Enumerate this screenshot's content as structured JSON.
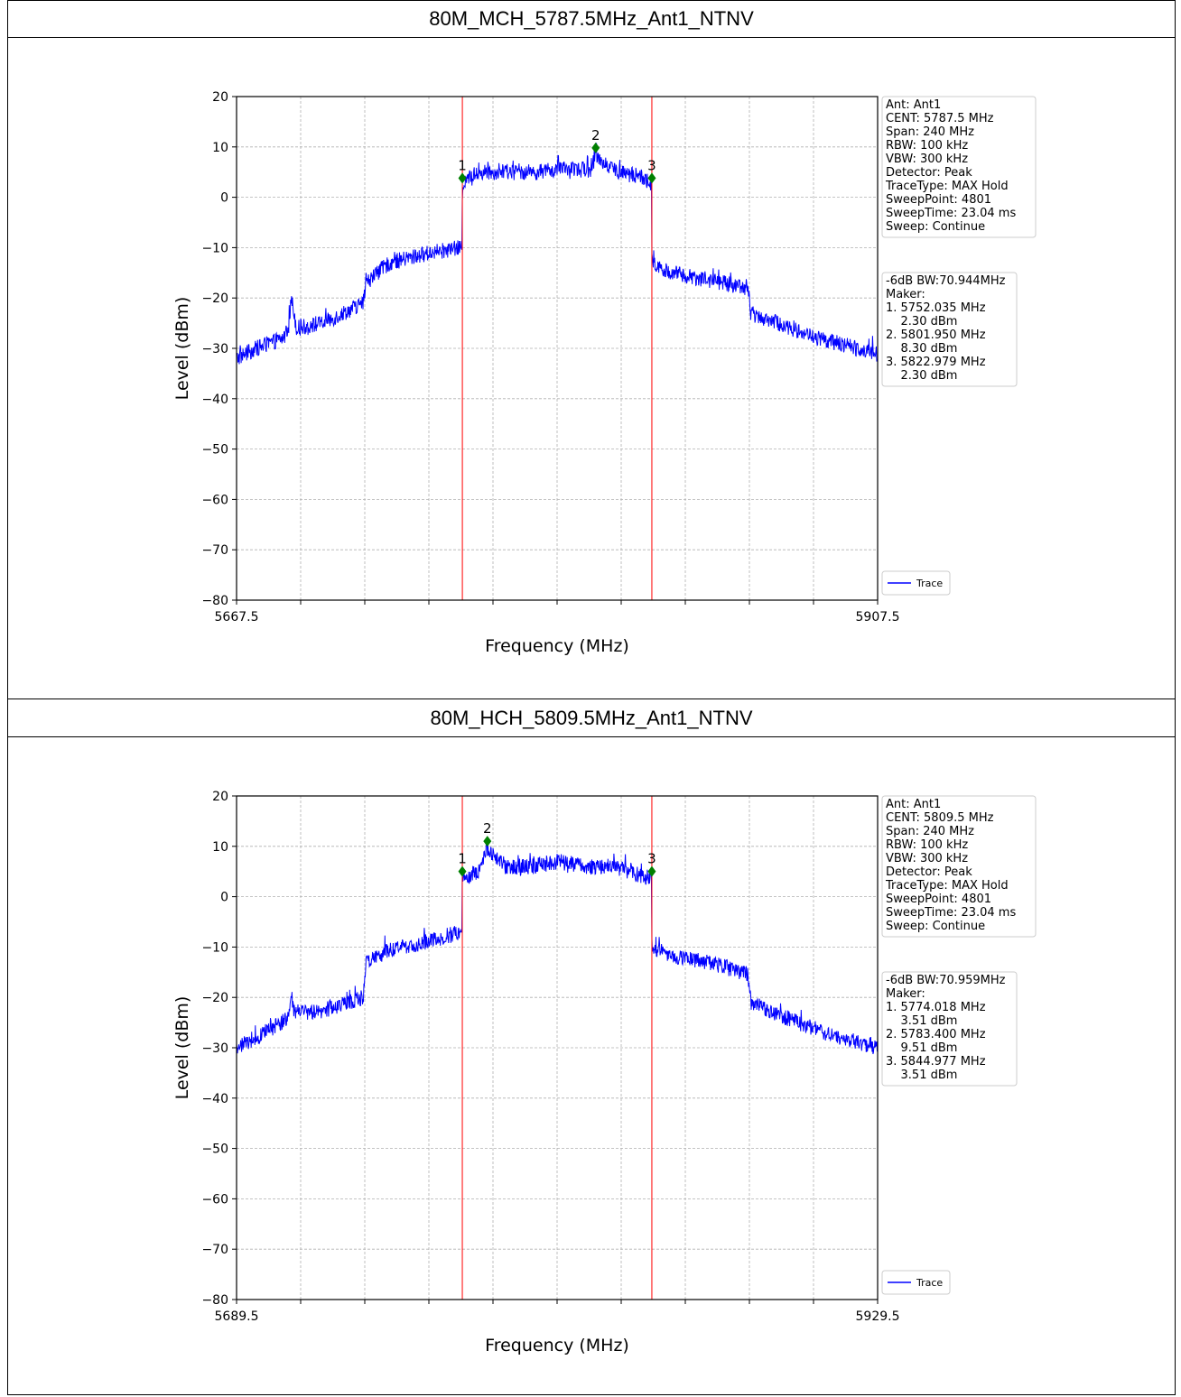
{
  "chart_data": [
    {
      "type": "line",
      "title": "80M_MCH_5787.5MHz_Ant1_NTNV",
      "xlabel": "Frequency (MHz)",
      "ylabel": "Level (dBm)",
      "xlim": [
        5667.5,
        5907.5
      ],
      "ylim": [
        -80,
        20
      ],
      "x_tick_labels": [
        "5667.5",
        "5907.5"
      ],
      "y_ticks": [
        20,
        10,
        0,
        -10,
        -20,
        -30,
        -40,
        -50,
        -60,
        -70,
        -80
      ],
      "y_tick_labels": [
        "20",
        "10",
        "0",
        "−10",
        "−20",
        "−30",
        "−40",
        "−50",
        "−60",
        "−70",
        "−80"
      ],
      "grid": true,
      "legend": {
        "position": "bottom-right, outside plot",
        "entries": [
          "Trace"
        ]
      },
      "series": [
        {
          "name": "Trace",
          "color": "#0000ff",
          "x": [
            5667.5,
            5675,
            5685,
            5687,
            5688,
            5690,
            5700,
            5715,
            5716,
            5720,
            5725,
            5740,
            5751.9,
            5752.04,
            5755,
            5760,
            5770,
            5780,
            5790,
            5800,
            5801.95,
            5810,
            5820,
            5822.9,
            5823.0,
            5830,
            5845,
            5859,
            5860,
            5870,
            5885,
            5907.5
          ],
          "y": [
            -32,
            -30,
            -28,
            -26,
            -20,
            -26,
            -25,
            -21,
            -17,
            -15,
            -13,
            -11,
            -10,
            2.3,
            4,
            5,
            5,
            5,
            5.5,
            5.5,
            8.3,
            5,
            4,
            2.3,
            -13,
            -15,
            -16.5,
            -18,
            -23,
            -25,
            -28,
            -31
          ]
        }
      ],
      "markers": [
        {
          "id": "1",
          "x": 5752.035,
          "y": 2.3
        },
        {
          "id": "2",
          "x": 5801.95,
          "y": 8.3
        },
        {
          "id": "3",
          "x": 5822.979,
          "y": 2.3
        }
      ],
      "vertical_lines": [
        5752.035,
        5822.979
      ],
      "info_box": [
        "Ant: Ant1",
        "CENT: 5787.5 MHz",
        "Span: 240 MHz",
        "RBW: 100 kHz",
        "VBW: 300 kHz",
        "Detector: Peak",
        "TraceType: MAX Hold",
        "SweepPoint: 4801",
        "SweepTime: 23.04 ms",
        "Sweep: Continue"
      ],
      "marker_box": [
        "-6dB BW:70.944MHz",
        "Maker:",
        "1. 5752.035 MHz",
        "    2.30 dBm",
        "2. 5801.950 MHz",
        "    8.30 dBm",
        "3. 5822.979 MHz",
        "    2.30 dBm"
      ]
    },
    {
      "type": "line",
      "title": "80M_HCH_5809.5MHz_Ant1_NTNV",
      "xlabel": "Frequency (MHz)",
      "ylabel": "Level (dBm)",
      "xlim": [
        5689.5,
        5929.5
      ],
      "ylim": [
        -80,
        20
      ],
      "x_tick_labels": [
        "5689.5",
        "5929.5"
      ],
      "y_ticks": [
        20,
        10,
        0,
        -10,
        -20,
        -30,
        -40,
        -50,
        -60,
        -70,
        -80
      ],
      "y_tick_labels": [
        "20",
        "10",
        "0",
        "−10",
        "−20",
        "−30",
        "−40",
        "−50",
        "−60",
        "−70",
        "−80"
      ],
      "grid": true,
      "legend": {
        "position": "bottom-right, outside plot",
        "entries": [
          "Trace"
        ]
      },
      "series": [
        {
          "name": "Trace",
          "color": "#0000ff",
          "x": [
            5689.5,
            5700,
            5709,
            5710,
            5711,
            5720,
            5737,
            5738,
            5745,
            5760,
            5773.9,
            5774.02,
            5780,
            5783.4,
            5790,
            5800,
            5810,
            5820,
            5830,
            5844.9,
            5845.0,
            5855,
            5870,
            5881,
            5882,
            5895,
            5910,
            5929.5
          ],
          "y": [
            -30,
            -27,
            -24,
            -19,
            -23,
            -23,
            -20,
            -13,
            -11,
            -9,
            -7,
            3.51,
            5,
            9.51,
            6,
            6,
            7,
            6,
            6,
            3.51,
            -10,
            -12,
            -13.5,
            -15.5,
            -21,
            -24,
            -27,
            -30
          ]
        }
      ],
      "markers": [
        {
          "id": "1",
          "x": 5774.018,
          "y": 3.51
        },
        {
          "id": "2",
          "x": 5783.4,
          "y": 9.51
        },
        {
          "id": "3",
          "x": 5844.977,
          "y": 3.51
        }
      ],
      "vertical_lines": [
        5774.018,
        5844.977
      ],
      "info_box": [
        "Ant: Ant1",
        "CENT: 5809.5 MHz",
        "Span: 240 MHz",
        "RBW: 100 kHz",
        "VBW: 300 kHz",
        "Detector: Peak",
        "TraceType: MAX Hold",
        "SweepPoint: 4801",
        "SweepTime: 23.04 ms",
        "Sweep: Continue"
      ],
      "marker_box": [
        "-6dB BW:70.959MHz",
        "Maker:",
        "1. 5774.018 MHz",
        "    3.51 dBm",
        "2. 5783.400 MHz",
        "    9.51 dBm",
        "3. 5844.977 MHz",
        "    3.51 dBm"
      ]
    }
  ]
}
